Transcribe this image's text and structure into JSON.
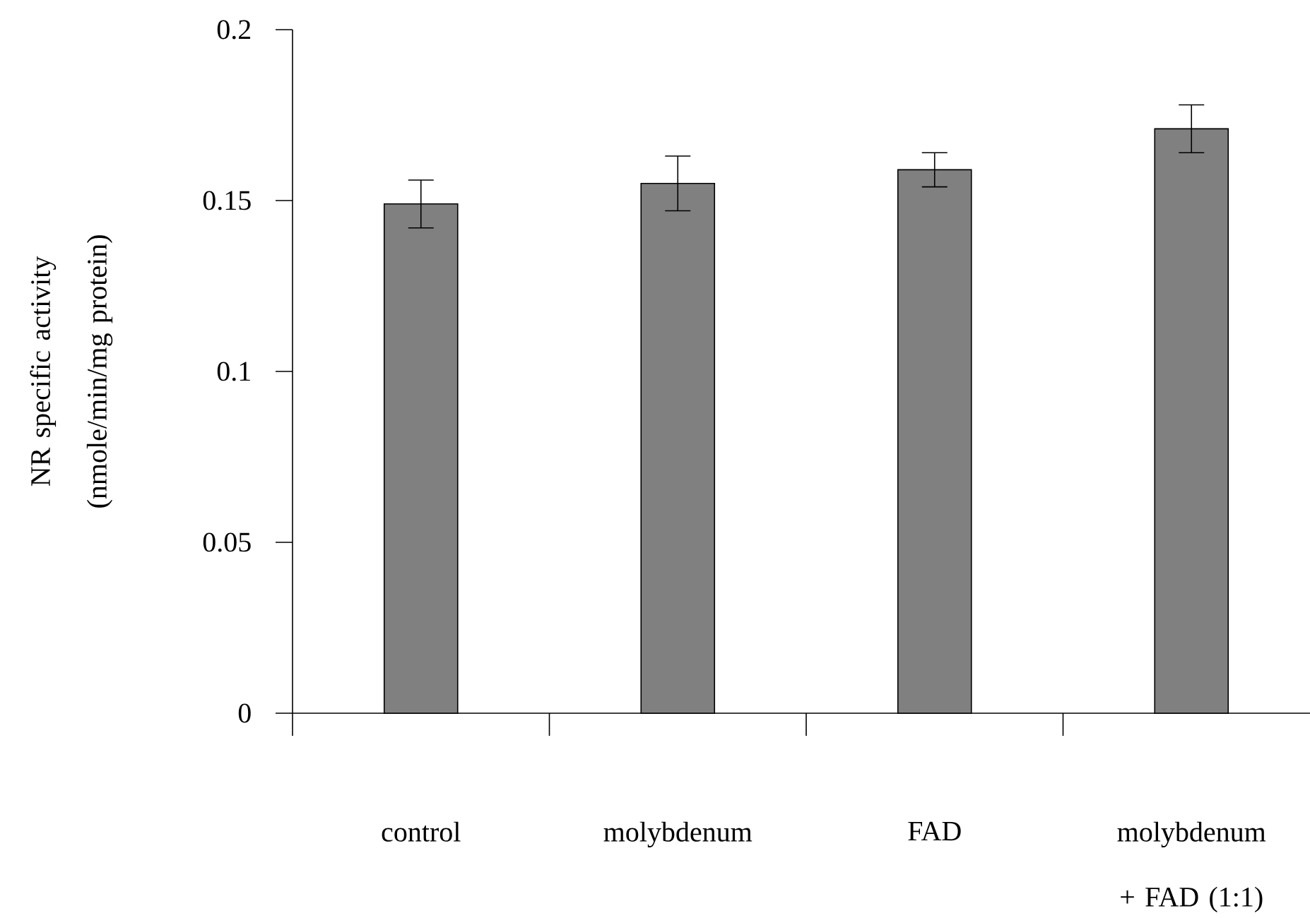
{
  "chart_data": {
    "type": "bar",
    "ylabel": "NR specific activity (nmole/min/mg protein)",
    "categories": [
      "control",
      "molybdenum",
      "FAD",
      "molybdenum + FAD (1:1)"
    ],
    "values": [
      0.149,
      0.155,
      0.159,
      0.171
    ],
    "errors": [
      0.007,
      0.008,
      0.005,
      0.007
    ],
    "color": "#808080",
    "ylim": [
      0,
      0.2
    ],
    "yticks": [
      0,
      0.05,
      0.1,
      0.15,
      0.2
    ]
  }
}
